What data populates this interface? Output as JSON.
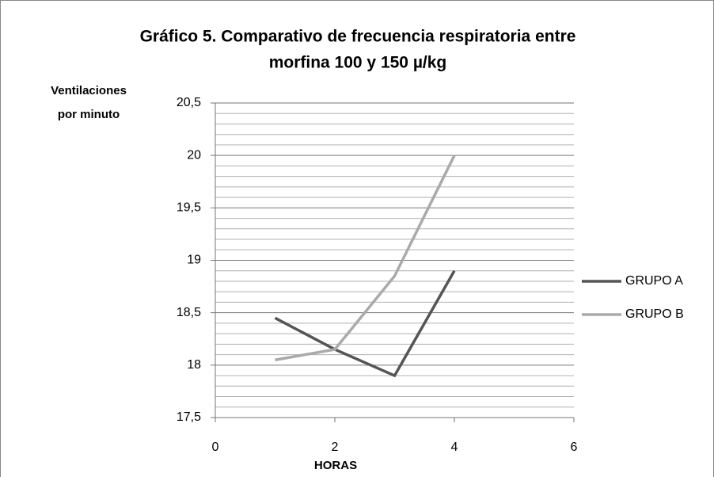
{
  "chart_data": {
    "type": "line",
    "title": [
      "Gráfico 5. Comparativo de frecuencia respiratoria entre",
      "morfina 100 y 150 µ/kg"
    ],
    "ylabel": [
      "Ventilaciones",
      "por minuto"
    ],
    "xlabel": "HORAS",
    "series": [
      {
        "name": "GRUPO A",
        "color": "#555555",
        "x": [
          1,
          2,
          3,
          4
        ],
        "values": [
          18.45,
          18.15,
          17.9,
          18.9
        ]
      },
      {
        "name": "GRUPO B",
        "color": "#aaaaaa",
        "x": [
          1,
          2,
          3,
          4
        ],
        "values": [
          18.05,
          18.15,
          18.85,
          20.0
        ]
      }
    ],
    "xlim": [
      0,
      6
    ],
    "xticks": [
      0,
      2,
      4,
      6
    ],
    "ylim": [
      17.5,
      20.5
    ],
    "yticks": [
      {
        "value": 17.5,
        "label": "17,5"
      },
      18,
      {
        "value": 18.5,
        "label": "18,5"
      },
      19,
      {
        "value": 19.5,
        "label": "19,5"
      },
      20,
      {
        "value": 20.5,
        "label": "20,5"
      }
    ],
    "grid": true,
    "minor_grid": true,
    "legend": "right"
  }
}
